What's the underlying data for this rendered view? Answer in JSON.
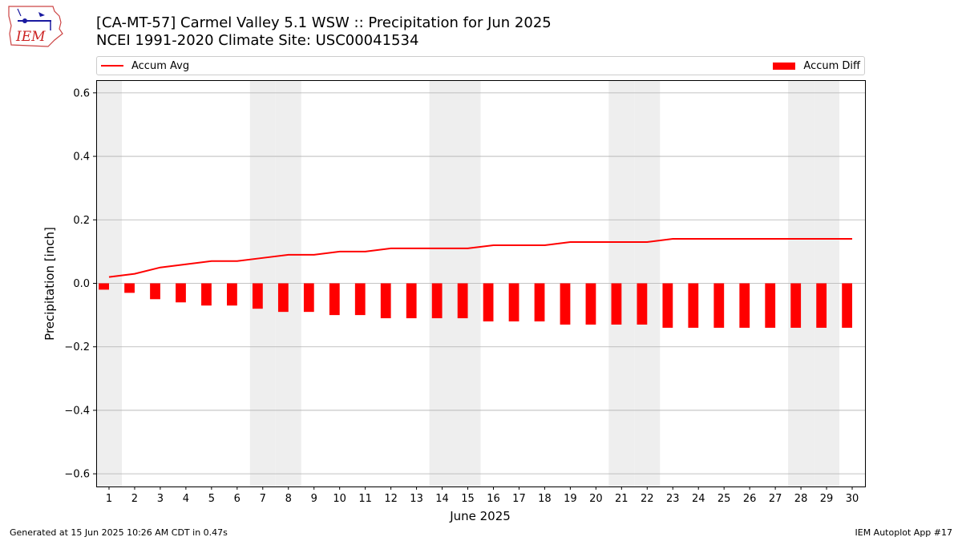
{
  "title_line1": "[CA-MT-57] Carmel Valley 5.1 WSW :: Precipitation for Jun 2025",
  "title_line2": "NCEI 1991-2020 Climate Site: USC00041534",
  "logo_text": "IEM",
  "legend": {
    "avg_label": "Accum Avg",
    "diff_label": "Accum Diff"
  },
  "footer": {
    "left": "Generated at 15 Jun 2025 10:26 AM CDT in 0.47s",
    "right": "IEM Autoplot App #17"
  },
  "colors": {
    "avg_line": "#ff0000",
    "diff_bar": "#ff0000",
    "weekend_band": "#eeeeee",
    "grid": "#b0b0b0"
  },
  "chart_data": {
    "type": "bar",
    "xlabel": "June 2025",
    "ylabel": "Precipitation [inch]",
    "ylim": [
      -0.64,
      0.64
    ],
    "xlim": [
      0.5,
      30.5
    ],
    "yticks": [
      -0.6,
      -0.4,
      -0.2,
      0.0,
      0.2,
      0.4,
      0.6
    ],
    "ytick_labels": [
      "−0.6",
      "−0.4",
      "−0.2",
      "0.0",
      "0.2",
      "0.4",
      "0.6"
    ],
    "x": [
      1,
      2,
      3,
      4,
      5,
      6,
      7,
      8,
      9,
      10,
      11,
      12,
      13,
      14,
      15,
      16,
      17,
      18,
      19,
      20,
      21,
      22,
      23,
      24,
      25,
      26,
      27,
      28,
      29,
      30
    ],
    "grid": "horizontal",
    "legend_placement": "top",
    "shaded_days": [
      1,
      7,
      8,
      14,
      15,
      21,
      22,
      28,
      29
    ],
    "series": [
      {
        "name": "Accum Avg",
        "type": "line",
        "values": [
          0.02,
          0.03,
          0.05,
          0.06,
          0.07,
          0.07,
          0.08,
          0.09,
          0.09,
          0.1,
          0.1,
          0.11,
          0.11,
          0.11,
          0.11,
          0.12,
          0.12,
          0.12,
          0.13,
          0.13,
          0.13,
          0.13,
          0.14,
          0.14,
          0.14,
          0.14,
          0.14,
          0.14,
          0.14,
          0.14
        ]
      },
      {
        "name": "Accum Diff",
        "type": "bar",
        "values": [
          -0.02,
          -0.03,
          -0.05,
          -0.06,
          -0.07,
          -0.07,
          -0.08,
          -0.09,
          -0.09,
          -0.1,
          -0.1,
          -0.11,
          -0.11,
          -0.11,
          -0.11,
          -0.12,
          -0.12,
          -0.12,
          -0.13,
          -0.13,
          -0.13,
          -0.13,
          -0.14,
          -0.14,
          -0.14,
          -0.14,
          -0.14,
          -0.14,
          -0.14,
          -0.14
        ]
      }
    ]
  }
}
